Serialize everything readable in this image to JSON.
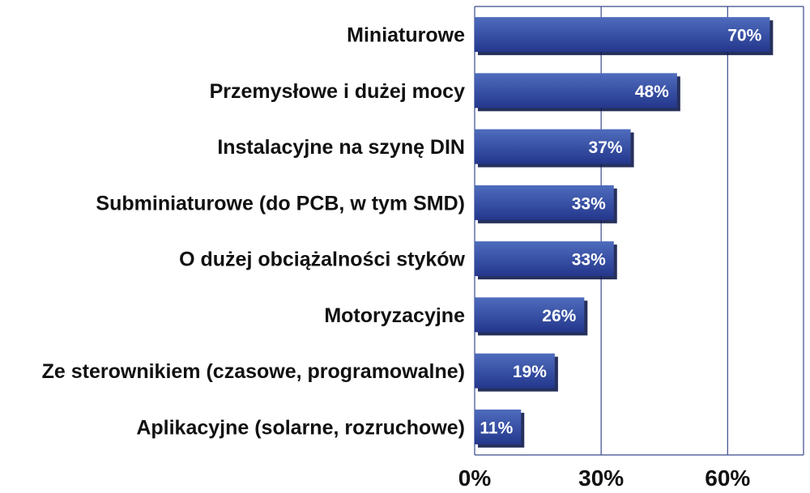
{
  "chart_data": {
    "type": "bar",
    "orientation": "horizontal",
    "categories": [
      "Miniaturowe",
      "Przemysłowe i dużej mocy",
      "Instalacyjne na szynę DIN",
      "Subminiaturowe (do PCB, w tym SMD)",
      "O dużej obciążalności styków",
      "Motoryzacyjne",
      "Ze sterownikiem (czasowe, programowalne)",
      "Aplikacyjne (solarne, rozruchowe)"
    ],
    "values": [
      70,
      48,
      37,
      33,
      33,
      26,
      19,
      11
    ],
    "value_labels": [
      "70%",
      "48%",
      "37%",
      "33%",
      "33%",
      "26%",
      "19%",
      "11%"
    ],
    "x_ticks": [
      0,
      30,
      60
    ],
    "x_tick_labels": [
      "0%",
      "30%",
      "60%"
    ],
    "xlim": [
      0,
      78
    ],
    "grid": true,
    "legend": "none",
    "colors": {
      "bar_top": "#4f6cbd",
      "bar_bottom": "#23378c",
      "bar_shadow": "#0e1a4a",
      "grid": "#3a4a8c",
      "axis": "#3a4a8c"
    }
  }
}
